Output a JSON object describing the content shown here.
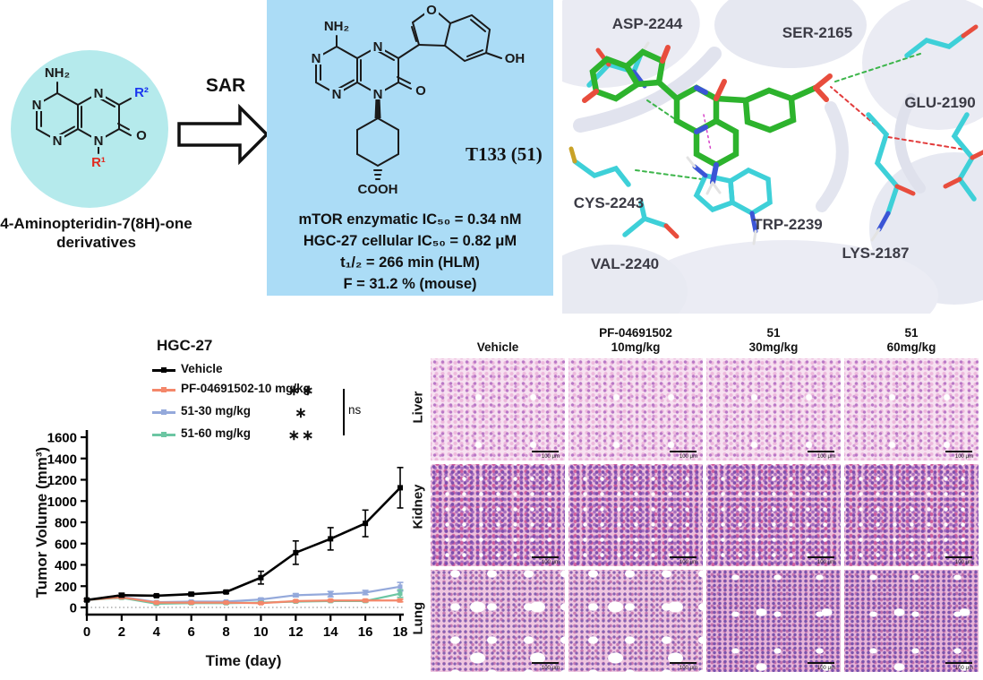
{
  "colors": {
    "scaffold_circle_bg": "#b5eaec",
    "compound_box_bg": "#abdcf6",
    "r1_red": "#e12a1f",
    "r2_blue": "#1a36f0",
    "vehicle": "#000000",
    "pf04691502": "#f4876a",
    "dose30": "#94a9db",
    "dose60": "#6cc6a3",
    "ligand_green": "#2db32d",
    "residue_cyan": "#3ed0d8"
  },
  "scaffold_panel": {
    "caption_line1": "4-Aminopteridin-7(8H)-one",
    "caption_line2": "derivatives",
    "sar_label": "SAR",
    "atoms": {
      "nh2": "NH₂",
      "n": "N",
      "o": "O",
      "r1": "R¹",
      "r2": "R²"
    }
  },
  "compound_panel": {
    "name": "T133 (51)",
    "atoms": {
      "nh2": "NH₂",
      "n": "N",
      "o": "O",
      "oh": "OH",
      "cooh": "COOH"
    },
    "properties": [
      "mTOR enzymatic IC₅₀ = 0.34 nM",
      "HGC-27 cellular IC₅₀ = 0.82 μM",
      "t₁/₂ = 266 min (HLM)",
      "F = 31.2 % (mouse)"
    ]
  },
  "docking_panel": {
    "residues": [
      "ASP-2244",
      "SER-2165",
      "GLU-2190",
      "CYS-2243",
      "TRP-2239",
      "LYS-2187",
      "VAL-2240"
    ]
  },
  "chart_data": {
    "type": "line",
    "title": "HGC-27",
    "xlabel": "Time (day)",
    "ylabel": "Tumor Volume (mm³)",
    "x": [
      0,
      2,
      4,
      6,
      8,
      10,
      12,
      14,
      16,
      18
    ],
    "xlim": [
      0,
      18
    ],
    "ylim": [
      0,
      1600
    ],
    "ytick_step": 200,
    "legend_position": "top-left inside",
    "grid": false,
    "comparison_bracket_label": "ns",
    "series": [
      {
        "name": "Vehicle",
        "color": "#000000",
        "significance": "",
        "values": [
          70,
          115,
          110,
          125,
          145,
          280,
          515,
          645,
          790,
          1125
        ],
        "errors": [
          12,
          18,
          10,
          15,
          12,
          60,
          110,
          105,
          125,
          190
        ]
      },
      {
        "name": "PF-04691502-10 mg/kg",
        "color": "#f4876a",
        "significance": "∗∗",
        "values": [
          70,
          95,
          45,
          45,
          45,
          40,
          60,
          65,
          65,
          65
        ],
        "errors": [
          8,
          10,
          8,
          8,
          8,
          8,
          8,
          8,
          10,
          12
        ]
      },
      {
        "name": "51-30 mg/kg",
        "color": "#94a9db",
        "significance": "∗",
        "values": [
          70,
          100,
          50,
          55,
          55,
          75,
          115,
          125,
          140,
          195
        ],
        "errors": [
          8,
          10,
          8,
          8,
          8,
          12,
          15,
          25,
          20,
          40
        ]
      },
      {
        "name": "51-60 mg/kg",
        "color": "#6cc6a3",
        "significance": "∗∗",
        "values": [
          70,
          90,
          35,
          40,
          40,
          45,
          55,
          60,
          60,
          130
        ],
        "errors": [
          8,
          10,
          8,
          8,
          8,
          8,
          8,
          8,
          10,
          35
        ]
      }
    ]
  },
  "histology": {
    "columns": [
      {
        "line1": "",
        "line2": "Vehicle"
      },
      {
        "line1": "PF-04691502",
        "line2": "10mg/kg"
      },
      {
        "line1": "51",
        "line2": "30mg/kg"
      },
      {
        "line1": "51",
        "line2": "60mg/kg"
      }
    ],
    "rows": [
      "Liver",
      "Kidney",
      "Lung"
    ],
    "scale_bar_label": "100 μm"
  }
}
